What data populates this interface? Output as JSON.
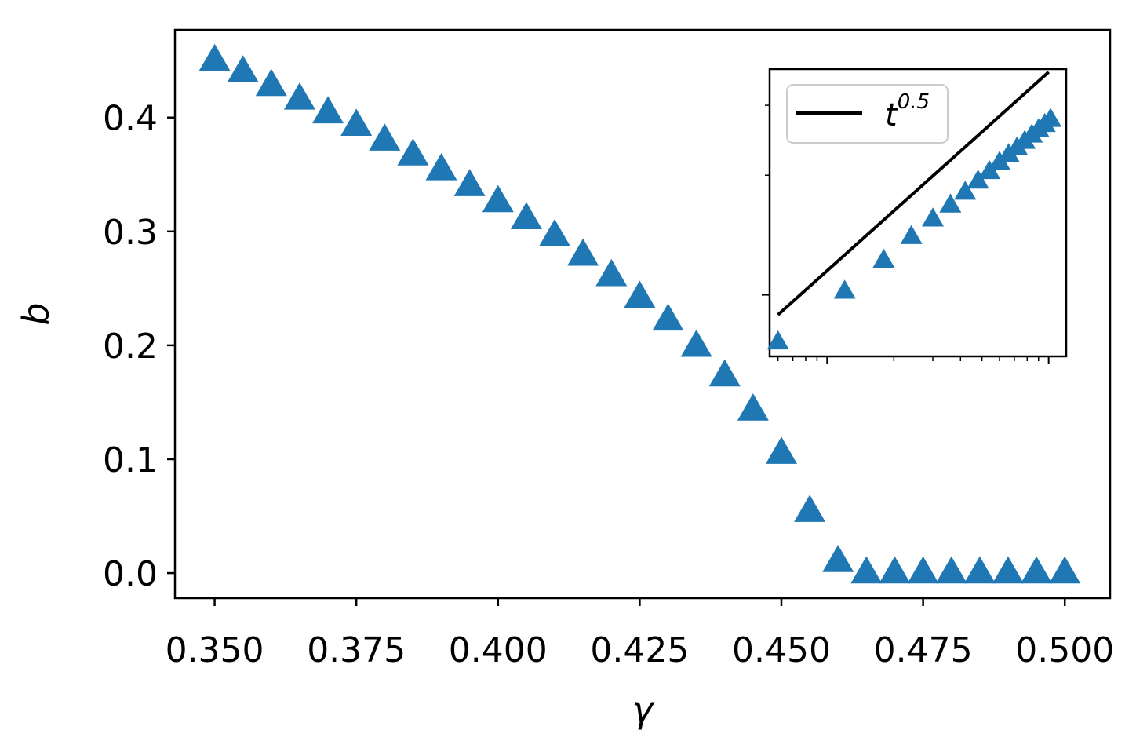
{
  "chart_data": [
    {
      "type": "scatter",
      "marker": "triangle",
      "color": "#1f77b4",
      "xlabel": "γ",
      "ylabel": "b",
      "xlim": [
        0.343,
        0.508
      ],
      "ylim": [
        -0.022,
        0.477
      ],
      "xticks": [
        0.35,
        0.375,
        0.4,
        0.425,
        0.45,
        0.475,
        0.5
      ],
      "xtick_labels": [
        "0.350",
        "0.375",
        "0.400",
        "0.425",
        "0.450",
        "0.475",
        "0.500"
      ],
      "yticks": [
        0.0,
        0.1,
        0.2,
        0.3,
        0.4
      ],
      "ytick_labels": [
        "0.0",
        "0.1",
        "0.2",
        "0.3",
        "0.4"
      ],
      "grid": false,
      "x": [
        0.35,
        0.355,
        0.36,
        0.365,
        0.37,
        0.375,
        0.38,
        0.385,
        0.39,
        0.395,
        0.4,
        0.405,
        0.41,
        0.415,
        0.42,
        0.425,
        0.43,
        0.435,
        0.44,
        0.445,
        0.45,
        0.455,
        0.46,
        0.465,
        0.47,
        0.475,
        0.48,
        0.485,
        0.49,
        0.495,
        0.5
      ],
      "y": [
        0.45,
        0.44,
        0.428,
        0.416,
        0.404,
        0.393,
        0.38,
        0.367,
        0.354,
        0.34,
        0.326,
        0.311,
        0.296,
        0.279,
        0.261,
        0.242,
        0.222,
        0.199,
        0.173,
        0.143,
        0.105,
        0.054,
        0.01,
        0.0,
        0.0,
        0.0,
        0.0,
        0.0,
        0.0,
        0.0,
        0.0
      ]
    },
    {
      "type": "line",
      "inset": true,
      "log_x": true,
      "log_y": true,
      "xlim": [
        0.55,
        12
      ],
      "ylim": [
        0.7,
        3.7
      ],
      "major_xticks": [
        1,
        10
      ],
      "minor_xticks": [
        0.6,
        0.7,
        0.8,
        0.9,
        2,
        3,
        4,
        5,
        6,
        7,
        8,
        9
      ],
      "major_yticks": [
        1
      ],
      "minor_yticks": [
        2,
        3
      ],
      "legend": {
        "position": "upper-left",
        "label": "t",
        "exponent": "0.5"
      },
      "series": [
        {
          "kind": "line",
          "color": "#000000",
          "exponent": 0.5,
          "amplitude": 1.15,
          "x_range": [
            0.6,
            10
          ]
        },
        {
          "kind": "scatter",
          "marker": "triangle",
          "color": "#1f77b4",
          "x": [
            0.6,
            1.2,
            1.8,
            2.4,
            3.0,
            3.6,
            4.2,
            4.8,
            5.4,
            6.0,
            6.6,
            7.2,
            7.8,
            8.4,
            9.0,
            9.6,
            10.2
          ],
          "y": [
            0.76,
            1.02,
            1.22,
            1.4,
            1.55,
            1.68,
            1.81,
            1.93,
            2.04,
            2.15,
            2.25,
            2.34,
            2.43,
            2.52,
            2.6,
            2.68,
            2.76
          ]
        }
      ]
    }
  ]
}
